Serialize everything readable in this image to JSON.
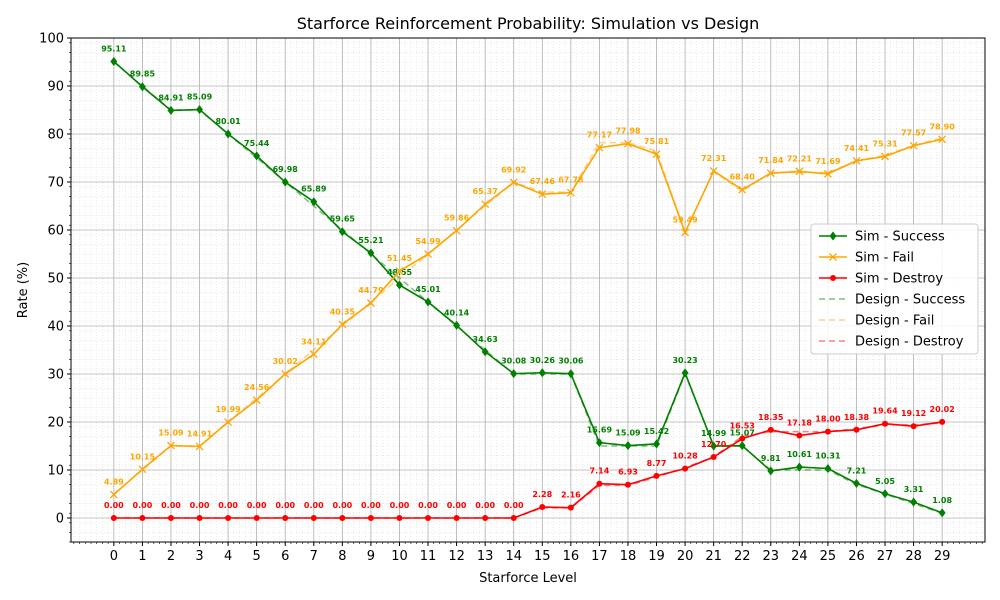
{
  "chart_data": {
    "type": "line",
    "title": "Starforce Reinforcement Probability: Simulation vs Design",
    "xlabel": "Starforce Level",
    "ylabel": "Rate (%)",
    "xlim": [
      -1.5,
      30.5
    ],
    "ylim": [
      -5,
      100
    ],
    "yticks": [
      0,
      10,
      20,
      30,
      40,
      50,
      60,
      70,
      80,
      90,
      100
    ],
    "grid": true,
    "legend_position": "center-right",
    "x": [
      0,
      1,
      2,
      3,
      4,
      5,
      6,
      7,
      8,
      9,
      10,
      11,
      12,
      13,
      14,
      15,
      16,
      17,
      18,
      19,
      20,
      21,
      22,
      23,
      24,
      25,
      26,
      27,
      28,
      29
    ],
    "series": [
      {
        "name": "Sim - Success",
        "color": "#008000",
        "marker": "diamond",
        "line": "solid",
        "labels": true,
        "values": [
          95.11,
          89.85,
          84.91,
          85.09,
          80.01,
          75.44,
          69.98,
          65.89,
          59.65,
          55.21,
          48.55,
          45.01,
          40.14,
          34.63,
          30.08,
          30.26,
          30.06,
          15.69,
          15.09,
          15.42,
          30.23,
          14.99,
          15.07,
          9.81,
          10.61,
          10.31,
          7.21,
          5.05,
          3.31,
          1.08
        ]
      },
      {
        "name": "Sim - Fail",
        "color": "#FFA500",
        "marker": "x",
        "line": "solid",
        "labels": true,
        "values": [
          4.89,
          10.15,
          15.09,
          14.91,
          19.99,
          24.56,
          30.02,
          34.11,
          40.35,
          44.79,
          51.45,
          54.99,
          59.86,
          65.37,
          69.92,
          67.46,
          67.78,
          77.17,
          77.98,
          75.81,
          59.49,
          72.31,
          68.4,
          71.84,
          72.21,
          71.69,
          74.41,
          75.31,
          77.57,
          78.9
        ]
      },
      {
        "name": "Sim - Destroy",
        "color": "#FF0000",
        "marker": "circle",
        "line": "solid",
        "labels": true,
        "values": [
          0.0,
          0.0,
          0.0,
          0.0,
          0.0,
          0.0,
          0.0,
          0.0,
          0.0,
          0.0,
          0.0,
          0.0,
          0.0,
          0.0,
          0.0,
          2.28,
          2.16,
          7.14,
          6.93,
          8.77,
          10.28,
          12.7,
          16.53,
          18.35,
          17.18,
          18.0,
          18.38,
          19.64,
          19.12,
          20.02
        ]
      },
      {
        "name": "Design - Success",
        "color": "#008000",
        "line": "dashed",
        "values": [
          95,
          90,
          85,
          85,
          80,
          75,
          70,
          65,
          60,
          55,
          50,
          45,
          40,
          35,
          30,
          30,
          30,
          15,
          15,
          15,
          30,
          15,
          15,
          10,
          10,
          10,
          7,
          5,
          3,
          1
        ]
      },
      {
        "name": "Design - Fail",
        "color": "#FFA500",
        "line": "dashed",
        "values": [
          5,
          10,
          15,
          15,
          20,
          25,
          30,
          35,
          40,
          45,
          50,
          55,
          60,
          65,
          70,
          67.9,
          67.9,
          78.2,
          78.2,
          76.5,
          59.5,
          72.25,
          68,
          72,
          72,
          72,
          74.4,
          75.6,
          77.6,
          79.2
        ]
      },
      {
        "name": "Design - Destroy",
        "color": "#FF0000",
        "line": "dashed",
        "values": [
          0,
          0,
          0,
          0,
          0,
          0,
          0,
          0,
          0,
          0,
          0,
          0,
          0,
          0,
          0,
          2.1,
          2.1,
          6.8,
          6.8,
          8.5,
          10.5,
          12.75,
          17,
          18,
          18,
          18,
          18.6,
          19.4,
          19.4,
          19.8
        ]
      }
    ]
  }
}
